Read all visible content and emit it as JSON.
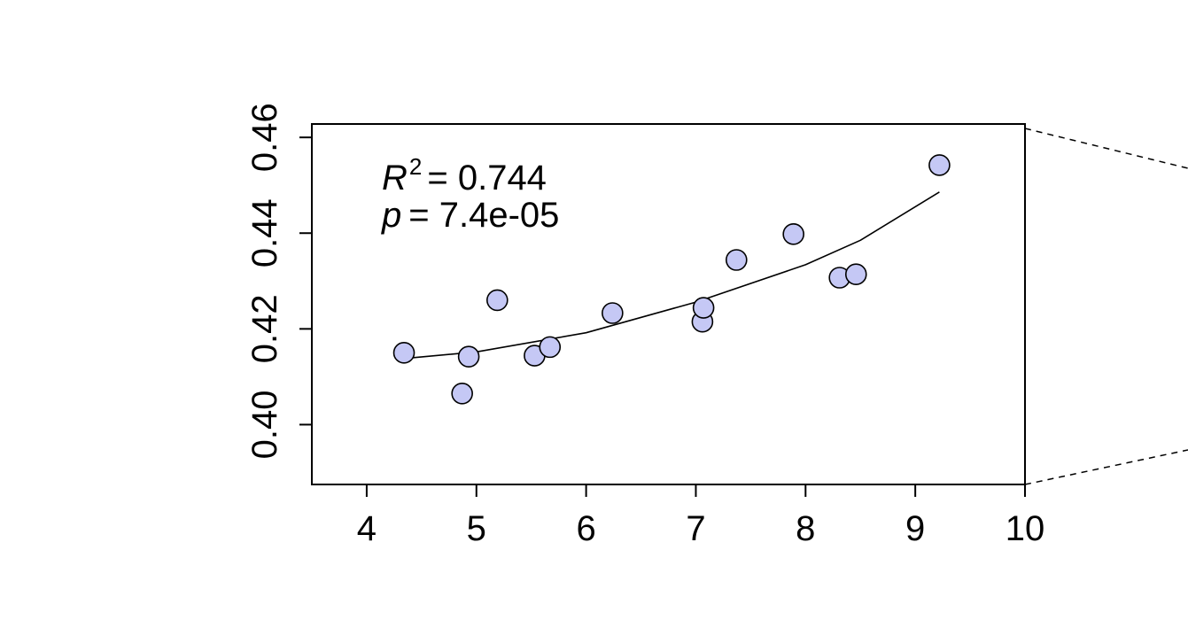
{
  "chart_data": {
    "type": "scatter",
    "title": "",
    "xlabel": "",
    "ylabel": "",
    "xlim": [
      3.5,
      10
    ],
    "ylim": [
      0.3875,
      0.4628
    ],
    "x_ticks": [
      "4",
      "5",
      "6",
      "7",
      "8",
      "9",
      "10"
    ],
    "y_ticks": [
      "0.40",
      "0.42",
      "0.44",
      "0.46"
    ],
    "points": [
      {
        "x": 4.34,
        "y": 0.415
      },
      {
        "x": 4.87,
        "y": 0.4065
      },
      {
        "x": 4.93,
        "y": 0.4142
      },
      {
        "x": 5.19,
        "y": 0.426
      },
      {
        "x": 5.53,
        "y": 0.4144
      },
      {
        "x": 5.67,
        "y": 0.4162
      },
      {
        "x": 6.24,
        "y": 0.4233
      },
      {
        "x": 7.06,
        "y": 0.4215
      },
      {
        "x": 7.07,
        "y": 0.4244
      },
      {
        "x": 7.37,
        "y": 0.4344
      },
      {
        "x": 7.89,
        "y": 0.4398
      },
      {
        "x": 8.31,
        "y": 0.4307
      },
      {
        "x": 8.46,
        "y": 0.4314
      },
      {
        "x": 9.22,
        "y": 0.4542
      }
    ],
    "fit_curve": [
      {
        "x": 4.34,
        "y": 0.4138
      },
      {
        "x": 5.0,
        "y": 0.4152
      },
      {
        "x": 6.0,
        "y": 0.4192
      },
      {
        "x": 7.0,
        "y": 0.4256
      },
      {
        "x": 8.0,
        "y": 0.4334
      },
      {
        "x": 8.5,
        "y": 0.4385
      },
      {
        "x": 9.22,
        "y": 0.4486
      }
    ],
    "annotation": {
      "r2_symbol": "R",
      "r2_exp": "2",
      "r2_value": "= 0.744",
      "p_symbol": "p",
      "p_value": "= 7.4e-05"
    },
    "grid": false,
    "legend": "none",
    "colors": {
      "point_fill": "#c5c8f5",
      "point_stroke": "#000000",
      "line": "#000000",
      "axis": "#000000"
    }
  }
}
